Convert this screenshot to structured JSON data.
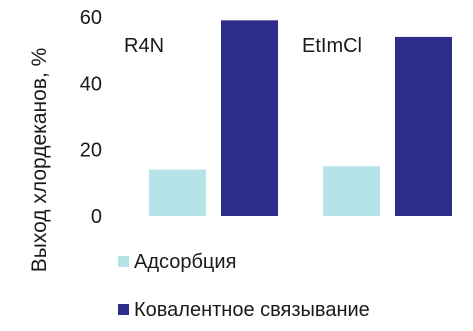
{
  "chart_data": {
    "type": "bar",
    "categories": [
      "R4N",
      "EtImCl"
    ],
    "series": [
      {
        "name": "Адсорбция",
        "values": [
          14,
          15
        ],
        "color": "#b5e4e8"
      },
      {
        "name": "Ковалентное связывание",
        "values": [
          59,
          54
        ],
        "color": "#2e2d8c"
      }
    ],
    "ylabel": "Выход хлордеканов, %",
    "xlabel": "",
    "title": "",
    "ylim": [
      0,
      60
    ],
    "yticks": [
      0,
      20,
      40,
      60
    ],
    "grid": false,
    "legend_position": "bottom"
  }
}
